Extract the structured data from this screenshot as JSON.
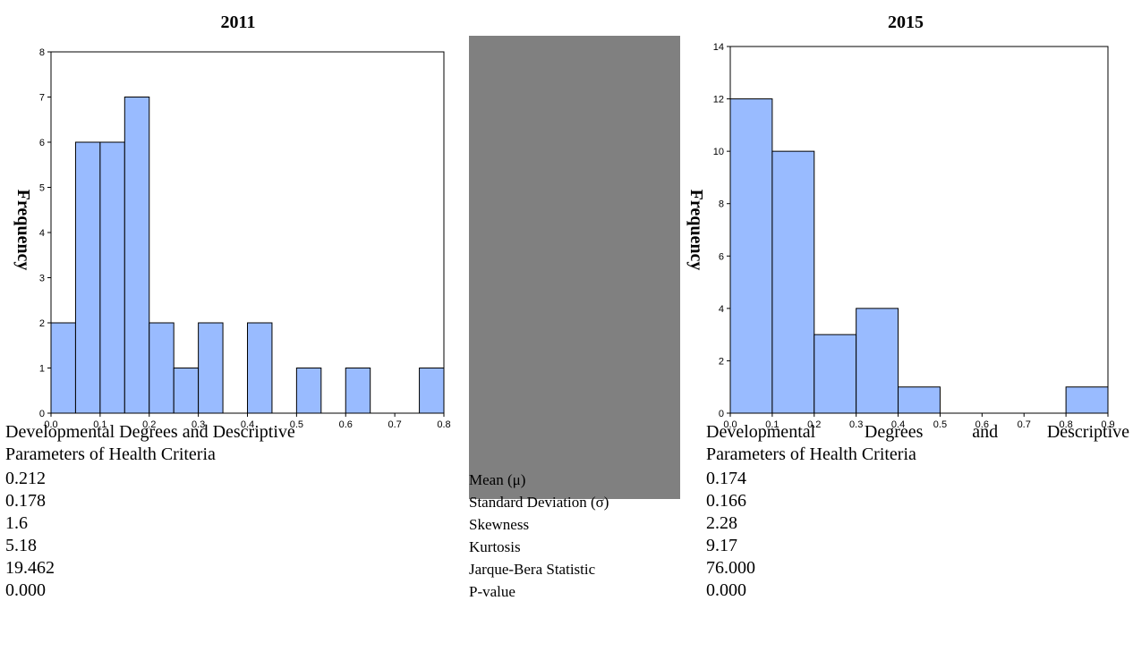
{
  "chart_data": [
    {
      "type": "bar",
      "title": "2011",
      "ylabel": "Frequency",
      "xlabel": "",
      "bin_edges": [
        0.0,
        0.05,
        0.1,
        0.15,
        0.2,
        0.25,
        0.3,
        0.35,
        0.4,
        0.45,
        0.5,
        0.55,
        0.6,
        0.65,
        0.7,
        0.75,
        0.8
      ],
      "values": [
        2,
        6,
        6,
        7,
        2,
        1,
        2,
        0,
        2,
        0,
        1,
        0,
        1,
        0,
        0,
        1
      ],
      "xlim": [
        0.0,
        0.8
      ],
      "ylim": [
        0,
        8
      ],
      "xticks": [
        "0.0",
        "0.1",
        "0.2",
        "0.3",
        "0.4",
        "0.5",
        "0.6",
        "0.7",
        "0.8"
      ],
      "yticks": [
        "0",
        "1",
        "2",
        "3",
        "4",
        "5",
        "6",
        "7",
        "8"
      ],
      "bar_color": "#99bbff",
      "grid": false
    },
    {
      "type": "bar",
      "title": "2015",
      "ylabel": "Frequency",
      "xlabel": "",
      "bin_edges": [
        0.0,
        0.1,
        0.2,
        0.3,
        0.4,
        0.5,
        0.6,
        0.7,
        0.8,
        0.9
      ],
      "values": [
        12,
        10,
        3,
        4,
        1,
        0,
        0,
        0,
        1
      ],
      "xlim": [
        0.0,
        0.9
      ],
      "ylim": [
        0,
        14
      ],
      "xticks": [
        "0.0",
        "0.1",
        "0.2",
        "0.3",
        "0.4",
        "0.5",
        "0.6",
        "0.7",
        "0.8",
        "0.9"
      ],
      "yticks": [
        "0",
        "2",
        "4",
        "6",
        "8",
        "10",
        "12",
        "14"
      ],
      "bar_color": "#99bbff",
      "grid": false
    }
  ],
  "caption": {
    "left_line1": "Developmental Degrees and Descriptive",
    "left_line2": "Parameters of Health Criteria",
    "right_words": [
      "Developmental",
      "Degrees",
      "and",
      "Descriptive"
    ],
    "right_line2": "Parameters of Health Criteria"
  },
  "stats": {
    "params": [
      "Mean (μ)",
      "Standard Deviation (σ)",
      "Skewness",
      "Kurtosis",
      "Jarque-Bera Statistic",
      "P-value"
    ],
    "values_2011": [
      "0.212",
      "0.178",
      "1.6",
      "5.18",
      "19.462",
      "0.000"
    ],
    "values_2015": [
      "0.174",
      "0.166",
      "2.28",
      "9.17",
      "76.000",
      "0.000"
    ]
  },
  "colors": {
    "bar_fill": "#99bbff",
    "panel_gray": "#808080"
  }
}
